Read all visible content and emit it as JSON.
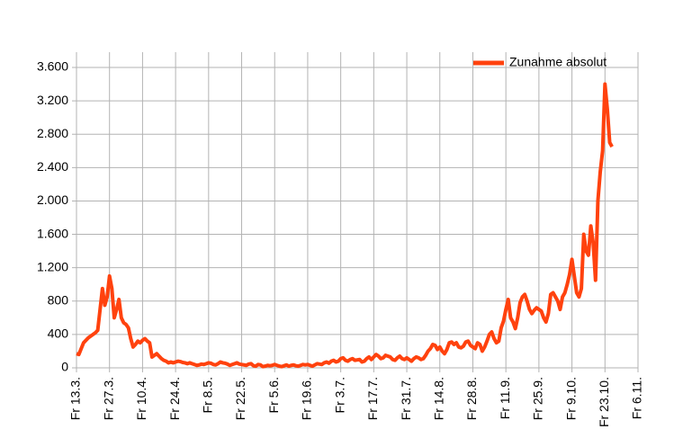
{
  "chart_data": {
    "type": "line",
    "categories": [
      "Fr 13.3.",
      null,
      null,
      null,
      null,
      null,
      null,
      null,
      null,
      null,
      null,
      null,
      null,
      null,
      "Fr 27.3.",
      null,
      null,
      null,
      null,
      null,
      null,
      null,
      null,
      null,
      null,
      null,
      null,
      null,
      "Fr 10.4.",
      null,
      null,
      null,
      null,
      null,
      null,
      null,
      null,
      null,
      null,
      null,
      null,
      null,
      "Fr 24.4.",
      null,
      null,
      null,
      null,
      null,
      null,
      null,
      null,
      null,
      null,
      null,
      null,
      null,
      "Fr 8.5.",
      null,
      null,
      null,
      null,
      null,
      null,
      null,
      null,
      null,
      null,
      null,
      null,
      null,
      "Fr 22.5.",
      null,
      null,
      null,
      null,
      null,
      null,
      null,
      null,
      null,
      null,
      null,
      null,
      null,
      "Fr 5.6.",
      null,
      null,
      null,
      null,
      null,
      null,
      null,
      null,
      null,
      null,
      null,
      null,
      null,
      "Fr 19.6.",
      null,
      null,
      null,
      null,
      null,
      null,
      null,
      null,
      null,
      null,
      null,
      null,
      null,
      "Fr 3.7.",
      null,
      null,
      null,
      null,
      null,
      null,
      null,
      null,
      null,
      null,
      null,
      null,
      null,
      "Fr 17.7.",
      null,
      null,
      null,
      null,
      null,
      null,
      null,
      null,
      null,
      null,
      null,
      null,
      null,
      "Fr 31.7.",
      null,
      null,
      null,
      null,
      null,
      null,
      null,
      null,
      null,
      null,
      null,
      null,
      null,
      "Fr 14.8.",
      null,
      null,
      null,
      null,
      null,
      null,
      null,
      null,
      null,
      null,
      null,
      null,
      null,
      "Fr 28.8.",
      null,
      null,
      null,
      null,
      null,
      null,
      null,
      null,
      null,
      null,
      null,
      null,
      null,
      "Fr 11.9.",
      null,
      null,
      null,
      null,
      null,
      null,
      null,
      null,
      null,
      null,
      null,
      null,
      null,
      "Fr 25.9.",
      null,
      null,
      null,
      null,
      null,
      null,
      null,
      null,
      null,
      null,
      null,
      null,
      null,
      "Fr 9.10.",
      null,
      null,
      null,
      null,
      null,
      null,
      null,
      null,
      null,
      null,
      null,
      null,
      null,
      "Fr 23.10.",
      null,
      null,
      null,
      null,
      null,
      null,
      null,
      null,
      null,
      null,
      null,
      null,
      null,
      "Fr 6.11."
    ],
    "series": [
      {
        "name": "Zunahme absolut",
        "color": "#ff420e",
        "values": [
          170,
          160,
          230,
          300,
          330,
          360,
          380,
          400,
          420,
          450,
          700,
          950,
          750,
          850,
          1100,
          950,
          600,
          700,
          820,
          600,
          540,
          520,
          480,
          350,
          250,
          280,
          320,
          300,
          330,
          350,
          320,
          300,
          130,
          150,
          170,
          140,
          110,
          90,
          80,
          60,
          70,
          60,
          70,
          80,
          75,
          65,
          60,
          50,
          60,
          50,
          40,
          30,
          35,
          45,
          40,
          50,
          60,
          55,
          40,
          35,
          50,
          70,
          60,
          55,
          45,
          30,
          40,
          50,
          60,
          45,
          40,
          35,
          30,
          45,
          50,
          25,
          20,
          40,
          35,
          15,
          20,
          30,
          25,
          30,
          40,
          30,
          20,
          15,
          25,
          35,
          20,
          30,
          35,
          25,
          20,
          30,
          40,
          35,
          40,
          30,
          20,
          35,
          50,
          45,
          40,
          60,
          70,
          55,
          80,
          90,
          70,
          80,
          110,
          120,
          90,
          80,
          100,
          110,
          90,
          95,
          100,
          70,
          80,
          110,
          130,
          100,
          130,
          160,
          140,
          110,
          120,
          150,
          140,
          130,
          100,
          90,
          120,
          140,
          110,
          100,
          120,
          100,
          80,
          110,
          130,
          120,
          100,
          110,
          150,
          200,
          230,
          280,
          270,
          220,
          250,
          200,
          170,
          220,
          300,
          310,
          280,
          300,
          250,
          240,
          260,
          310,
          320,
          270,
          250,
          230,
          300,
          280,
          200,
          250,
          320,
          400,
          430,
          350,
          300,
          320,
          480,
          560,
          700,
          820,
          600,
          550,
          470,
          600,
          780,
          850,
          880,
          800,
          700,
          650,
          690,
          720,
          700,
          680,
          600,
          550,
          650,
          880,
          900,
          850,
          800,
          700,
          850,
          900,
          1000,
          1120,
          1300,
          1100,
          900,
          850,
          950,
          1600,
          1400,
          1350,
          1700,
          1500,
          1050,
          2000,
          2350,
          2600,
          3400,
          3100,
          2700,
          2650,
          null,
          null,
          null,
          null,
          null,
          null,
          null,
          null,
          null,
          null,
          null
        ]
      }
    ],
    "ylim": [
      0,
      3600
    ],
    "yticks": [
      0,
      400,
      800,
      {
        "value": 1200,
        "label": "1.200"
      },
      {
        "value": 1600,
        "label": "1.600"
      },
      {
        "value": 2000,
        "label": "2.000"
      },
      {
        "value": 2400,
        "label": "2.400"
      },
      {
        "value": 2800,
        "label": "2.800"
      },
      {
        "value": 3200,
        "label": "3.200"
      },
      {
        "value": 3600,
        "label": "3.600"
      }
    ],
    "grid": true,
    "legend": "upper right"
  }
}
